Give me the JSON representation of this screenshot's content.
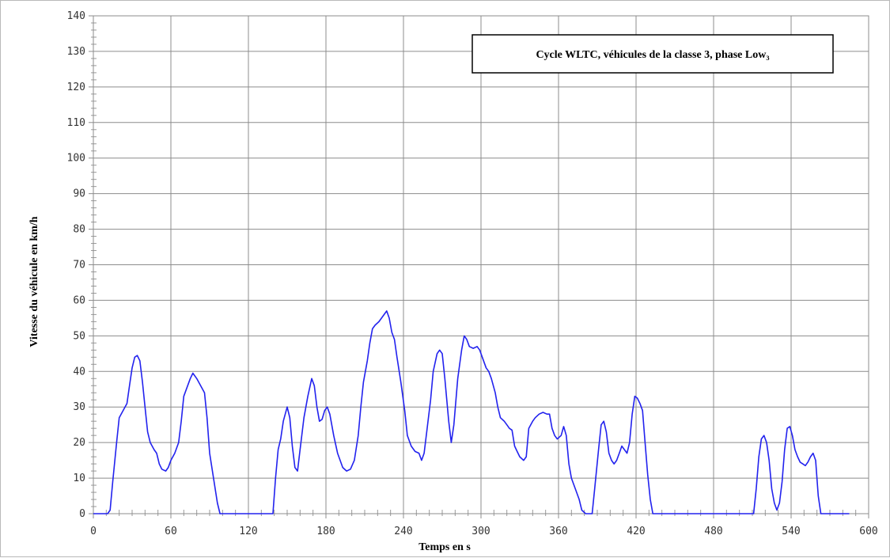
{
  "chart_data": {
    "type": "line",
    "title_box": "Cycle WLTC, véhicules de la classe 3, phase Low₃",
    "xlabel": "Temps en s",
    "ylabel": "Vitesse du véhicule en km/h",
    "xlim": [
      0,
      600
    ],
    "ylim": [
      0,
      140
    ],
    "xticks": [
      0,
      60,
      120,
      180,
      240,
      300,
      360,
      420,
      480,
      540,
      600
    ],
    "yticks": [
      0,
      10,
      20,
      30,
      40,
      50,
      60,
      70,
      80,
      90,
      100,
      110,
      120,
      130,
      140
    ],
    "x_minor_step": 10,
    "y_minor_step": 2,
    "grid": true,
    "line_color": "#2222ee",
    "grid_color": "#8c8c8c",
    "series": [
      {
        "points": [
          [
            0,
            0
          ],
          [
            11,
            0
          ],
          [
            13,
            1
          ],
          [
            15,
            9
          ],
          [
            18,
            20
          ],
          [
            20,
            27
          ],
          [
            23,
            29
          ],
          [
            26,
            31
          ],
          [
            28,
            36
          ],
          [
            30,
            41
          ],
          [
            32,
            44
          ],
          [
            34,
            44.5
          ],
          [
            36,
            43
          ],
          [
            38,
            37
          ],
          [
            40,
            30
          ],
          [
            42,
            23
          ],
          [
            44,
            20
          ],
          [
            47,
            18
          ],
          [
            49,
            17
          ],
          [
            51,
            14
          ],
          [
            53,
            12.5
          ],
          [
            56,
            12
          ],
          [
            58,
            13
          ],
          [
            60,
            15
          ],
          [
            63,
            17
          ],
          [
            66,
            20
          ],
          [
            68,
            26
          ],
          [
            70,
            33
          ],
          [
            73,
            36
          ],
          [
            75,
            38
          ],
          [
            77,
            39.5
          ],
          [
            80,
            38
          ],
          [
            83,
            36
          ],
          [
            86,
            34
          ],
          [
            88,
            27
          ],
          [
            90,
            17
          ],
          [
            93,
            10
          ],
          [
            96,
            3
          ],
          [
            98,
            0
          ],
          [
            100,
            0
          ],
          [
            137,
            0
          ],
          [
            139,
            0
          ],
          [
            141,
            10
          ],
          [
            143,
            18
          ],
          [
            145,
            21
          ],
          [
            147,
            26
          ],
          [
            150,
            30
          ],
          [
            152,
            27
          ],
          [
            154,
            19
          ],
          [
            156,
            13
          ],
          [
            158,
            12
          ],
          [
            160,
            18
          ],
          [
            163,
            27
          ],
          [
            166,
            33
          ],
          [
            169,
            38
          ],
          [
            171,
            36
          ],
          [
            173,
            30
          ],
          [
            175,
            26
          ],
          [
            177,
            26.5
          ],
          [
            179,
            29
          ],
          [
            181,
            30
          ],
          [
            183,
            28
          ],
          [
            186,
            22
          ],
          [
            189,
            17
          ],
          [
            193,
            13
          ],
          [
            196,
            12
          ],
          [
            199,
            12.5
          ],
          [
            202,
            15
          ],
          [
            205,
            22
          ],
          [
            207,
            30
          ],
          [
            209,
            37
          ],
          [
            212,
            43
          ],
          [
            214,
            48
          ],
          [
            216,
            52
          ],
          [
            218,
            53
          ],
          [
            221,
            54
          ],
          [
            224,
            55.5
          ],
          [
            227,
            57
          ],
          [
            229,
            55
          ],
          [
            231,
            51
          ],
          [
            233,
            49
          ],
          [
            235,
            44
          ],
          [
            238,
            37
          ],
          [
            241,
            29
          ],
          [
            243,
            22
          ],
          [
            246,
            19
          ],
          [
            249,
            17.5
          ],
          [
            252,
            17
          ],
          [
            254,
            15
          ],
          [
            256,
            17
          ],
          [
            258,
            23
          ],
          [
            261,
            32
          ],
          [
            263,
            40
          ],
          [
            266,
            45
          ],
          [
            268,
            46
          ],
          [
            270,
            45
          ],
          [
            272,
            38
          ],
          [
            275,
            26
          ],
          [
            277,
            20
          ],
          [
            279,
            25
          ],
          [
            282,
            38
          ],
          [
            285,
            46
          ],
          [
            287,
            50
          ],
          [
            289,
            49
          ],
          [
            291,
            47
          ],
          [
            294,
            46.5
          ],
          [
            297,
            47
          ],
          [
            299,
            46
          ],
          [
            301,
            44
          ],
          [
            304,
            41
          ],
          [
            306,
            40
          ],
          [
            308,
            38
          ],
          [
            311,
            34
          ],
          [
            313,
            30
          ],
          [
            315,
            27
          ],
          [
            318,
            26
          ],
          [
            320,
            25
          ],
          [
            322,
            24
          ],
          [
            324,
            23.5
          ],
          [
            326,
            19
          ],
          [
            328,
            17.5
          ],
          [
            330,
            16
          ],
          [
            333,
            15
          ],
          [
            335,
            16
          ],
          [
            337,
            24
          ],
          [
            340,
            26
          ],
          [
            342,
            27
          ],
          [
            345,
            28
          ],
          [
            348,
            28.5
          ],
          [
            351,
            28
          ],
          [
            353,
            28
          ],
          [
            355,
            24
          ],
          [
            357,
            22
          ],
          [
            359,
            21
          ],
          [
            362,
            22
          ],
          [
            364,
            24.5
          ],
          [
            366,
            22
          ],
          [
            368,
            14
          ],
          [
            370,
            10
          ],
          [
            373,
            7
          ],
          [
            376,
            4
          ],
          [
            378,
            1
          ],
          [
            381,
            0
          ],
          [
            384,
            0
          ],
          [
            386,
            0
          ],
          [
            388,
            7
          ],
          [
            391,
            18
          ],
          [
            393,
            25
          ],
          [
            395,
            26
          ],
          [
            397,
            23
          ],
          [
            399,
            17
          ],
          [
            401,
            15
          ],
          [
            403,
            14
          ],
          [
            405,
            15
          ],
          [
            407,
            17
          ],
          [
            409,
            19
          ],
          [
            411,
            18
          ],
          [
            413,
            17
          ],
          [
            415,
            20
          ],
          [
            417,
            28
          ],
          [
            419,
            33
          ],
          [
            421,
            32.5
          ],
          [
            423,
            31
          ],
          [
            425,
            29
          ],
          [
            427,
            20
          ],
          [
            429,
            11
          ],
          [
            431,
            4
          ],
          [
            433,
            0
          ],
          [
            435,
            0
          ],
          [
            511,
            0
          ],
          [
            513,
            7
          ],
          [
            515,
            16
          ],
          [
            517,
            21
          ],
          [
            519,
            22
          ],
          [
            521,
            20
          ],
          [
            523,
            15
          ],
          [
            525,
            7
          ],
          [
            527,
            3
          ],
          [
            529,
            1
          ],
          [
            531,
            3
          ],
          [
            533,
            9
          ],
          [
            535,
            18
          ],
          [
            537,
            24
          ],
          [
            539,
            24.5
          ],
          [
            541,
            22
          ],
          [
            543,
            18
          ],
          [
            545,
            16
          ],
          [
            547,
            14.5
          ],
          [
            549,
            14
          ],
          [
            551,
            13.5
          ],
          [
            553,
            14.5
          ],
          [
            555,
            16
          ],
          [
            557,
            17
          ],
          [
            559,
            15
          ],
          [
            561,
            5
          ],
          [
            563,
            0
          ],
          [
            585,
            0
          ]
        ]
      }
    ]
  }
}
